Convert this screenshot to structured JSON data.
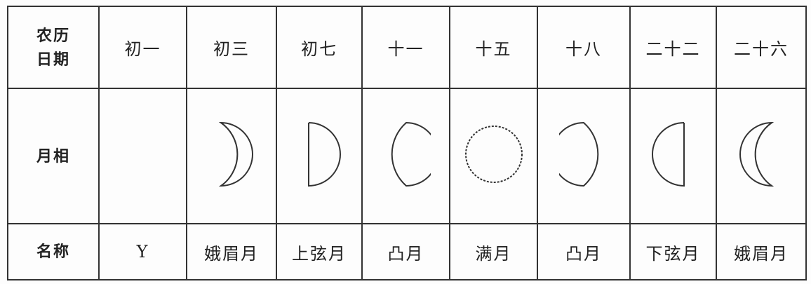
{
  "table": {
    "header": {
      "label": [
        "农历",
        "日期"
      ],
      "cells": [
        "初一",
        "初三",
        "初七",
        "十一",
        "十五",
        "十八",
        "二十二",
        "二十六"
      ]
    },
    "phase_row": {
      "label": "月相"
    },
    "name_row": {
      "label": "名称",
      "cells": [
        "Y",
        "娥眉月",
        "上弦月",
        "凸月",
        "满月",
        "凸月",
        "下弦月",
        "娥眉月"
      ]
    }
  }
}
